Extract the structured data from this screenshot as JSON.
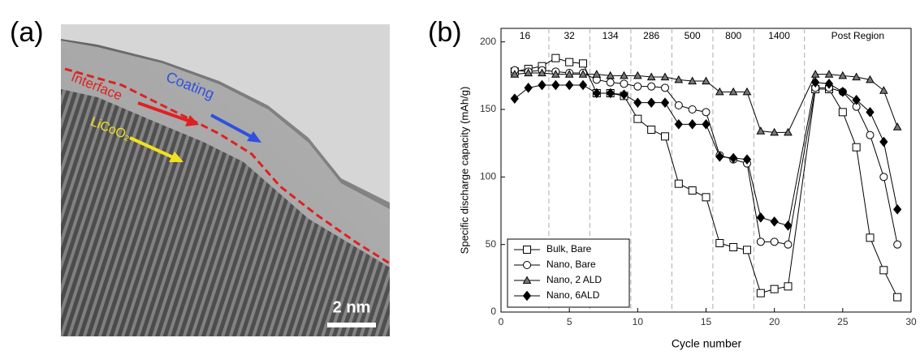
{
  "panel_a": {
    "label": "(a)",
    "annotations": [
      {
        "text": "Interface",
        "color": "#e02020"
      },
      {
        "text": "Coating",
        "color": "#3050e0"
      },
      {
        "text": "LiCoO₂",
        "color": "#f0e020"
      }
    ],
    "scale_bar": "2 nm"
  },
  "chart_data": {
    "type": "line",
    "panel_label": "(b)",
    "x_label": "Cycle number",
    "y_label": "Specific discharge capacity (mAh/g)",
    "xlim": [
      0,
      30
    ],
    "ylim": [
      0,
      210
    ],
    "xticks": [
      0,
      5,
      10,
      15,
      20,
      25,
      30
    ],
    "yticks": [
      0,
      50,
      100,
      150,
      200
    ],
    "legend": "lower left",
    "region_boundaries": [
      3.5,
      6.5,
      9.5,
      12.5,
      15.5,
      18.5,
      22.2
    ],
    "regions": [
      "16",
      "32",
      "134",
      "286",
      "500",
      "800",
      "1400",
      "Post Region"
    ],
    "x": [
      1,
      2,
      3,
      4,
      5,
      6,
      7,
      8,
      9,
      10,
      11,
      12,
      13,
      14,
      15,
      16,
      17,
      18,
      19,
      20,
      21,
      23,
      24,
      25,
      26,
      27,
      28,
      29
    ],
    "series": [
      {
        "name": "Bulk, Bare",
        "color": "#000000",
        "marker": "square",
        "values": [
          178,
          180,
          182,
          188,
          185,
          184,
          162,
          162,
          160,
          143,
          135,
          130,
          95,
          90,
          85,
          51,
          48,
          46,
          14,
          17,
          19,
          165,
          165,
          148,
          122,
          55,
          31,
          11
        ]
      },
      {
        "name": "Nano, Bare",
        "color": "#000000",
        "marker": "circle",
        "values": [
          179,
          178,
          179,
          178,
          177,
          177,
          172,
          170,
          169,
          167,
          167,
          166,
          153,
          150,
          148,
          116,
          113,
          110,
          52,
          52,
          50,
          166,
          166,
          163,
          152,
          131,
          100,
          50
        ]
      },
      {
        "name": "Nano, 2 ALD",
        "color": "#000000",
        "marker": "triangle",
        "values": [
          176,
          177,
          177,
          176,
          176,
          176,
          176,
          175,
          175,
          175,
          174,
          174,
          172,
          171,
          171,
          163,
          163,
          163,
          134,
          133,
          133,
          176,
          176,
          175,
          174,
          172,
          164,
          137
        ]
      },
      {
        "name": "Nano, 6ALD",
        "color": "#000000",
        "marker": "diamond",
        "values": [
          158,
          166,
          168,
          168,
          168,
          168,
          162,
          162,
          161,
          155,
          155,
          155,
          139,
          139,
          139,
          115,
          114,
          113,
          70,
          67,
          64,
          170,
          169,
          163,
          157,
          148,
          126,
          76
        ]
      }
    ]
  }
}
